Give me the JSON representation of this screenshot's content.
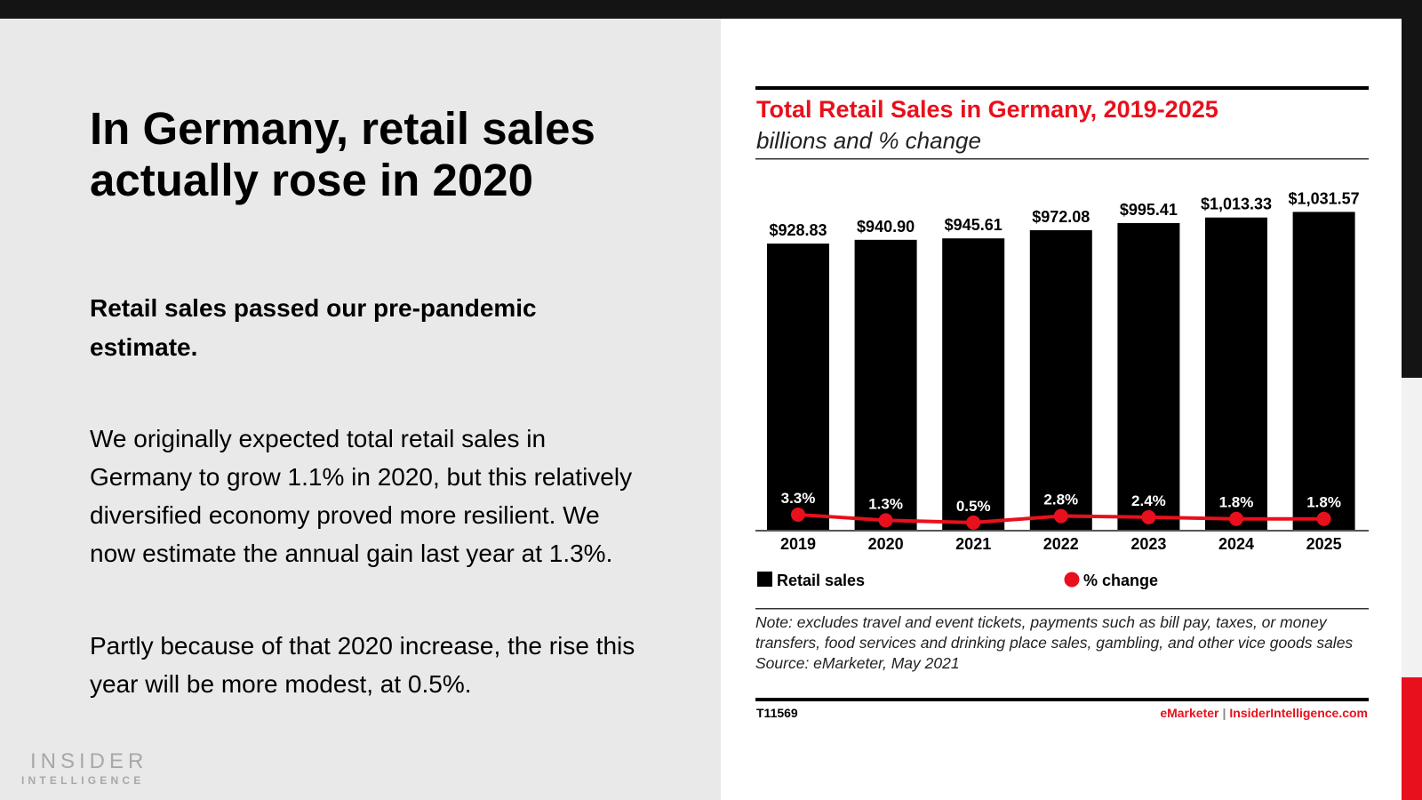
{
  "slide": {
    "headline": "In Germany, retail sales actually rose in 2020",
    "subhead": "Retail sales passed our pre-pandemic estimate.",
    "paragraph1": "We originally expected total retail sales in Germany to grow 1.1% in 2020, but this relatively diversified economy proved more resilient. We now estimate the annual gain last year at 1.3%.",
    "paragraph2": "Partly because of that 2020 increase, the rise this year will be more modest, at 0.5%.",
    "logo_line1": "INSIDER",
    "logo_line2": "INTELLIGENCE"
  },
  "chart_data": {
    "type": "bar",
    "title": "Total Retail Sales in Germany, 2019-2025",
    "subtitle": "billions and % change",
    "categories": [
      "2019",
      "2020",
      "2021",
      "2022",
      "2023",
      "2024",
      "2025"
    ],
    "series": [
      {
        "name": "Retail sales",
        "type": "bar",
        "color": "#000000",
        "values": [
          928.83,
          940.9,
          945.61,
          972.08,
          995.41,
          1013.33,
          1031.57
        ],
        "labels": [
          "$928.83",
          "$940.90",
          "$945.61",
          "$972.08",
          "$995.41",
          "$1,013.33",
          "$1,031.57"
        ]
      },
      {
        "name": "% change",
        "type": "line",
        "color": "#e8101c",
        "values": [
          3.3,
          1.3,
          0.5,
          2.8,
          2.4,
          1.8,
          1.8
        ],
        "labels": [
          "3.3%",
          "1.3%",
          "0.5%",
          "2.8%",
          "2.4%",
          "1.8%",
          "1.8%"
        ]
      }
    ],
    "ylim": [
      0,
      1040
    ],
    "legend": "bottom",
    "note": "Note: excludes travel and event tickets, payments such as bill pay, taxes, or money transfers, food services and drinking place sales, gambling, and other vice goods sales",
    "source": "Source: eMarketer, May 2021",
    "id": "T11569",
    "footer_brand": "eMarketer",
    "footer_sep": "|",
    "footer_site": "InsiderIntelligence.com"
  }
}
